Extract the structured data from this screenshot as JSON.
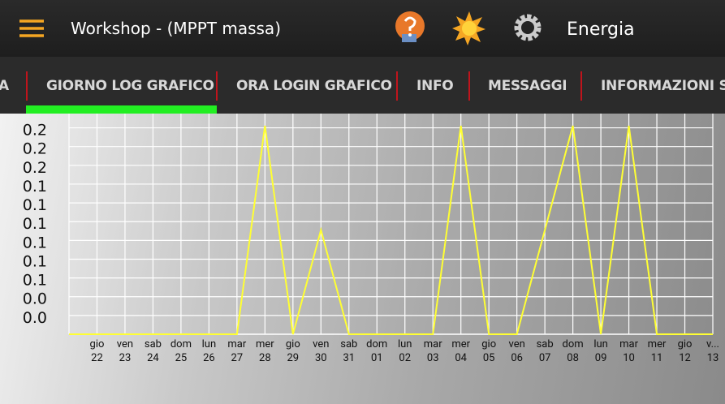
{
  "header": {
    "title": "Workshop - (MPPT massa)",
    "right_label": "Energia"
  },
  "tabs": [
    "A",
    "GIORNO LOG GRAFICO",
    "ORA LOGIN GRAFICO",
    "INFO",
    "MESSAGGI",
    "INFORMAZIONI SU"
  ],
  "chart_data": {
    "type": "line",
    "color": "#ffff33",
    "grid": true,
    "categories": [
      null,
      "gio\n22",
      "ven\n23",
      "sab\n24",
      "dom\n25",
      "lun\n26",
      "mar\n27",
      "mer\n28",
      "gio\n29",
      "ven\n30",
      "sab\n31",
      "dom\n01",
      "lun\n02",
      "mar\n03",
      "mer\n04",
      "gio\n05",
      "ven\n06",
      "sab\n07",
      "dom\n08",
      "lun\n09",
      "mar\n10",
      "mer\n11",
      "gio\n12",
      "v...\n13"
    ],
    "values": [
      0,
      0,
      0,
      0,
      0,
      0,
      0,
      0.2,
      0,
      0.1,
      0,
      0,
      0,
      0,
      0.2,
      0,
      0,
      0.1,
      0.2,
      0,
      0.2,
      0,
      0,
      0
    ],
    "ylim": [
      0,
      0.2
    ],
    "yticks": [
      {
        "value": 0.018,
        "label": "0.0"
      },
      {
        "value": 0.036,
        "label": "0.0"
      },
      {
        "value": 0.054,
        "label": "0.1"
      },
      {
        "value": 0.072,
        "label": "0.1"
      },
      {
        "value": 0.09,
        "label": "0.1"
      },
      {
        "value": 0.108,
        "label": "0.1"
      },
      {
        "value": 0.126,
        "label": "0.1"
      },
      {
        "value": 0.144,
        "label": "0.1"
      },
      {
        "value": 0.162,
        "label": "0.2"
      },
      {
        "value": 0.18,
        "label": "0.2"
      },
      {
        "value": 0.198,
        "label": "0.2"
      }
    ]
  }
}
